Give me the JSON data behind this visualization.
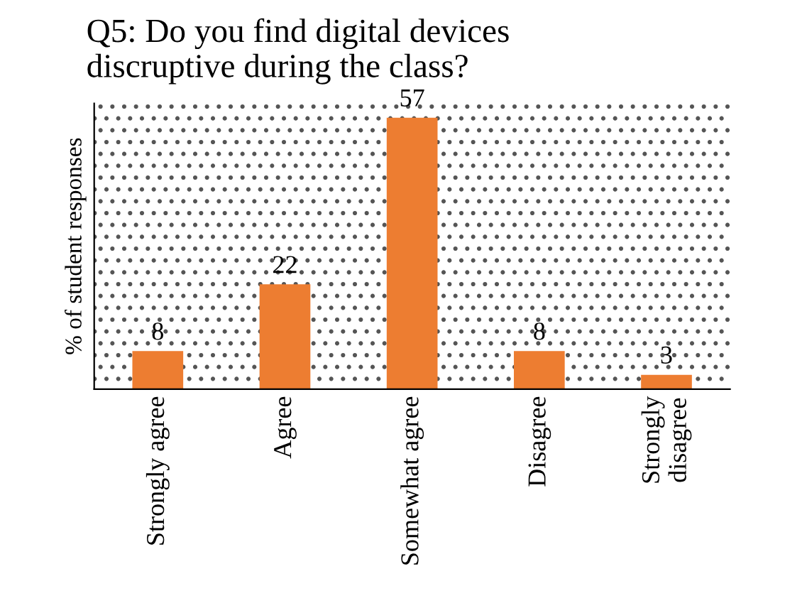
{
  "chart_data": {
    "type": "bar",
    "title": "Q5: Do you find digital devices\ndiscruptive during the class?",
    "ylabel": "% of student responses",
    "categories": [
      "Strongly agree",
      "Agree",
      "Somewhat agree",
      "Disagree",
      "Strongly\ndisagree"
    ],
    "values": [
      8,
      22,
      57,
      8,
      3
    ],
    "color": "#ed7d31",
    "ylim": [
      0,
      60
    ],
    "data_labels": true,
    "tick_labels": "x"
  }
}
